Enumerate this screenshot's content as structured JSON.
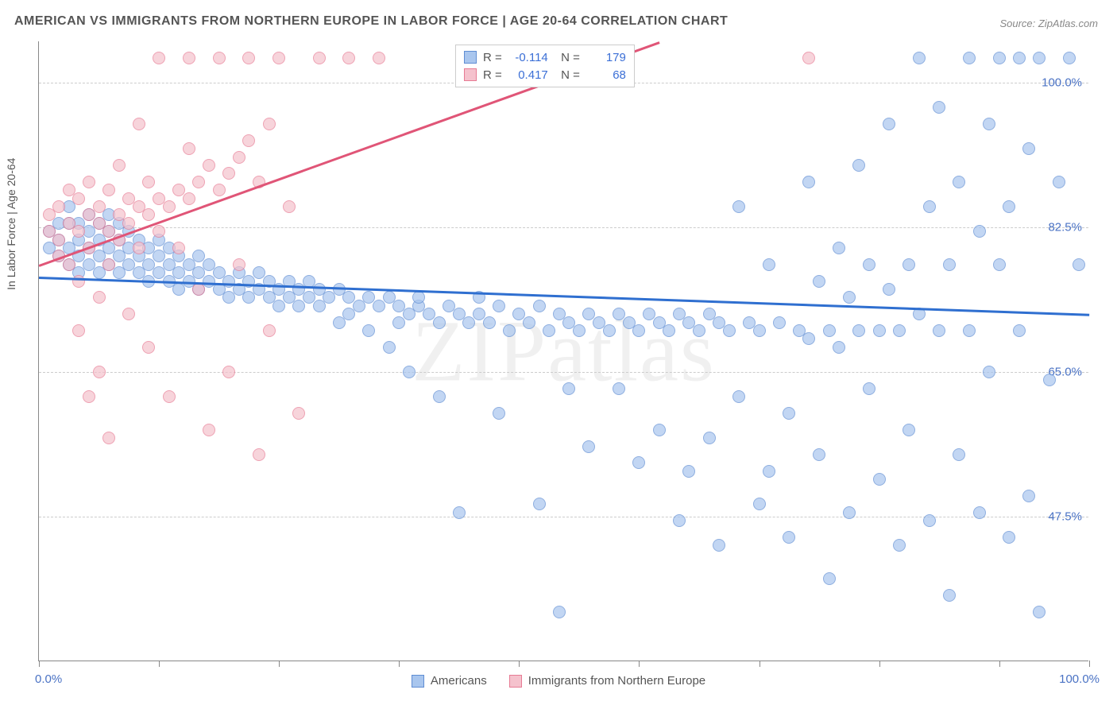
{
  "title": "AMERICAN VS IMMIGRANTS FROM NORTHERN EUROPE IN LABOR FORCE | AGE 20-64 CORRELATION CHART",
  "source": "Source: ZipAtlas.com",
  "watermark": "ZIPatlas",
  "y_axis_label": "In Labor Force | Age 20-64",
  "chart": {
    "type": "scatter",
    "background_color": "#ffffff",
    "grid_color": "#cccccc",
    "axis_color": "#888888",
    "label_color": "#4a72c4",
    "label_fontsize": 15,
    "title_fontsize": 16,
    "xlim": [
      0,
      105
    ],
    "ylim": [
      30,
      105
    ],
    "x_ticks": [
      0,
      12,
      24,
      36,
      48,
      60,
      72,
      84,
      96,
      105
    ],
    "x_tick_labels": {
      "0": "0.0%",
      "105": "100.0%"
    },
    "y_ticks": [
      47.5,
      65.0,
      82.5,
      100.0
    ],
    "y_tick_labels": [
      "47.5%",
      "65.0%",
      "82.5%",
      "100.0%"
    ],
    "marker_radius": 8,
    "marker_fill_opacity": 0.35,
    "series": [
      {
        "name": "Americans",
        "color_fill": "#a9c6ee",
        "color_stroke": "#5f8dd3",
        "trend_color": "#2f6fd0",
        "R": "-0.114",
        "N": "179",
        "trend": {
          "x1": 0,
          "y1": 76.5,
          "x2": 105,
          "y2": 72.0
        },
        "points": [
          [
            1,
            80
          ],
          [
            1,
            82
          ],
          [
            2,
            81
          ],
          [
            2,
            83
          ],
          [
            2,
            79
          ],
          [
            3,
            80
          ],
          [
            3,
            83
          ],
          [
            3,
            78
          ],
          [
            3,
            85
          ],
          [
            4,
            81
          ],
          [
            4,
            79
          ],
          [
            4,
            77
          ],
          [
            4,
            83
          ],
          [
            5,
            80
          ],
          [
            5,
            82
          ],
          [
            5,
            78
          ],
          [
            5,
            84
          ],
          [
            6,
            81
          ],
          [
            6,
            79
          ],
          [
            6,
            83
          ],
          [
            6,
            77
          ],
          [
            7,
            80
          ],
          [
            7,
            82
          ],
          [
            7,
            78
          ],
          [
            7,
            84
          ],
          [
            8,
            81
          ],
          [
            8,
            79
          ],
          [
            8,
            77
          ],
          [
            8,
            83
          ],
          [
            9,
            80
          ],
          [
            9,
            78
          ],
          [
            9,
            82
          ],
          [
            10,
            79
          ],
          [
            10,
            81
          ],
          [
            10,
            77
          ],
          [
            11,
            80
          ],
          [
            11,
            78
          ],
          [
            11,
            76
          ],
          [
            12,
            79
          ],
          [
            12,
            77
          ],
          [
            12,
            81
          ],
          [
            13,
            78
          ],
          [
            13,
            76
          ],
          [
            13,
            80
          ],
          [
            14,
            77
          ],
          [
            14,
            79
          ],
          [
            14,
            75
          ],
          [
            15,
            78
          ],
          [
            15,
            76
          ],
          [
            16,
            77
          ],
          [
            16,
            75
          ],
          [
            16,
            79
          ],
          [
            17,
            76
          ],
          [
            17,
            78
          ],
          [
            18,
            77
          ],
          [
            18,
            75
          ],
          [
            19,
            76
          ],
          [
            19,
            74
          ],
          [
            20,
            77
          ],
          [
            20,
            75
          ],
          [
            21,
            76
          ],
          [
            21,
            74
          ],
          [
            22,
            75
          ],
          [
            22,
            77
          ],
          [
            23,
            76
          ],
          [
            23,
            74
          ],
          [
            24,
            75
          ],
          [
            24,
            73
          ],
          [
            25,
            76
          ],
          [
            25,
            74
          ],
          [
            26,
            75
          ],
          [
            26,
            73
          ],
          [
            27,
            74
          ],
          [
            27,
            76
          ],
          [
            28,
            75
          ],
          [
            28,
            73
          ],
          [
            29,
            74
          ],
          [
            30,
            75
          ],
          [
            30,
            71
          ],
          [
            31,
            74
          ],
          [
            31,
            72
          ],
          [
            32,
            73
          ],
          [
            33,
            74
          ],
          [
            33,
            70
          ],
          [
            34,
            73
          ],
          [
            35,
            74
          ],
          [
            35,
            68
          ],
          [
            36,
            73
          ],
          [
            36,
            71
          ],
          [
            37,
            72
          ],
          [
            37,
            65
          ],
          [
            38,
            73
          ],
          [
            38,
            74
          ],
          [
            39,
            72
          ],
          [
            40,
            71
          ],
          [
            40,
            62
          ],
          [
            41,
            73
          ],
          [
            42,
            72
          ],
          [
            42,
            48
          ],
          [
            43,
            71
          ],
          [
            44,
            72
          ],
          [
            44,
            74
          ],
          [
            45,
            71
          ],
          [
            46,
            73
          ],
          [
            46,
            60
          ],
          [
            47,
            70
          ],
          [
            48,
            72
          ],
          [
            49,
            71
          ],
          [
            50,
            73
          ],
          [
            50,
            49
          ],
          [
            51,
            70
          ],
          [
            52,
            72
          ],
          [
            52,
            36
          ],
          [
            53,
            71
          ],
          [
            53,
            63
          ],
          [
            54,
            70
          ],
          [
            55,
            72
          ],
          [
            55,
            56
          ],
          [
            56,
            71
          ],
          [
            57,
            70
          ],
          [
            58,
            63
          ],
          [
            58,
            72
          ],
          [
            59,
            71
          ],
          [
            60,
            70
          ],
          [
            60,
            54
          ],
          [
            61,
            72
          ],
          [
            62,
            71
          ],
          [
            62,
            58
          ],
          [
            63,
            70
          ],
          [
            64,
            72
          ],
          [
            64,
            47
          ],
          [
            65,
            71
          ],
          [
            65,
            53
          ],
          [
            66,
            70
          ],
          [
            67,
            72
          ],
          [
            67,
            57
          ],
          [
            68,
            71
          ],
          [
            68,
            44
          ],
          [
            69,
            70
          ],
          [
            70,
            62
          ],
          [
            70,
            85
          ],
          [
            71,
            71
          ],
          [
            72,
            70
          ],
          [
            72,
            49
          ],
          [
            73,
            53
          ],
          [
            73,
            78
          ],
          [
            74,
            71
          ],
          [
            75,
            60
          ],
          [
            75,
            45
          ],
          [
            76,
            70
          ],
          [
            77,
            69
          ],
          [
            77,
            88
          ],
          [
            78,
            55
          ],
          [
            78,
            76
          ],
          [
            79,
            70
          ],
          [
            79,
            40
          ],
          [
            80,
            68
          ],
          [
            80,
            80
          ],
          [
            81,
            74
          ],
          [
            81,
            48
          ],
          [
            82,
            70
          ],
          [
            82,
            90
          ],
          [
            83,
            63
          ],
          [
            83,
            78
          ],
          [
            84,
            70
          ],
          [
            84,
            52
          ],
          [
            85,
            75
          ],
          [
            85,
            95
          ],
          [
            86,
            70
          ],
          [
            86,
            44
          ],
          [
            87,
            78
          ],
          [
            87,
            58
          ],
          [
            88,
            72
          ],
          [
            88,
            103
          ],
          [
            89,
            85
          ],
          [
            89,
            47
          ],
          [
            90,
            70
          ],
          [
            90,
            97
          ],
          [
            91,
            78
          ],
          [
            91,
            38
          ],
          [
            92,
            88
          ],
          [
            92,
            55
          ],
          [
            93,
            70
          ],
          [
            93,
            103
          ],
          [
            94,
            82
          ],
          [
            94,
            48
          ],
          [
            95,
            95
          ],
          [
            95,
            65
          ],
          [
            96,
            103
          ],
          [
            96,
            78
          ],
          [
            97,
            85
          ],
          [
            97,
            45
          ],
          [
            98,
            103
          ],
          [
            98,
            70
          ],
          [
            99,
            92
          ],
          [
            99,
            50
          ],
          [
            100,
            103
          ],
          [
            100,
            36
          ],
          [
            101,
            64
          ],
          [
            102,
            88
          ],
          [
            103,
            103
          ],
          [
            104,
            78
          ]
        ]
      },
      {
        "name": "Immigrants from Northern Europe",
        "color_fill": "#f5c2cd",
        "color_stroke": "#e77b94",
        "trend_color": "#e05577",
        "R": "0.417",
        "N": "68",
        "trend": {
          "x1": 0,
          "y1": 78.0,
          "x2": 62,
          "y2": 105.0
        },
        "points": [
          [
            1,
            82
          ],
          [
            1,
            84
          ],
          [
            2,
            81
          ],
          [
            2,
            85
          ],
          [
            2,
            79
          ],
          [
            3,
            83
          ],
          [
            3,
            87
          ],
          [
            3,
            78
          ],
          [
            4,
            82
          ],
          [
            4,
            86
          ],
          [
            4,
            76
          ],
          [
            4,
            70
          ],
          [
            5,
            84
          ],
          [
            5,
            80
          ],
          [
            5,
            88
          ],
          [
            5,
            62
          ],
          [
            6,
            83
          ],
          [
            6,
            85
          ],
          [
            6,
            74
          ],
          [
            6,
            65
          ],
          [
            7,
            82
          ],
          [
            7,
            87
          ],
          [
            7,
            78
          ],
          [
            7,
            57
          ],
          [
            8,
            84
          ],
          [
            8,
            81
          ],
          [
            8,
            90
          ],
          [
            9,
            83
          ],
          [
            9,
            86
          ],
          [
            9,
            72
          ],
          [
            10,
            85
          ],
          [
            10,
            80
          ],
          [
            10,
            95
          ],
          [
            11,
            84
          ],
          [
            11,
            88
          ],
          [
            11,
            68
          ],
          [
            12,
            86
          ],
          [
            12,
            82
          ],
          [
            12,
            103
          ],
          [
            13,
            85
          ],
          [
            13,
            62
          ],
          [
            14,
            87
          ],
          [
            14,
            80
          ],
          [
            15,
            86
          ],
          [
            15,
            92
          ],
          [
            15,
            103
          ],
          [
            16,
            88
          ],
          [
            16,
            75
          ],
          [
            17,
            90
          ],
          [
            17,
            58
          ],
          [
            18,
            87
          ],
          [
            18,
            103
          ],
          [
            19,
            89
          ],
          [
            19,
            65
          ],
          [
            20,
            91
          ],
          [
            20,
            78
          ],
          [
            21,
            93
          ],
          [
            21,
            103
          ],
          [
            22,
            88
          ],
          [
            22,
            55
          ],
          [
            23,
            95
          ],
          [
            23,
            70
          ],
          [
            24,
            103
          ],
          [
            25,
            85
          ],
          [
            26,
            60
          ],
          [
            28,
            103
          ],
          [
            31,
            103
          ],
          [
            34,
            103
          ],
          [
            52,
            103
          ],
          [
            77,
            103
          ]
        ]
      }
    ]
  },
  "legend": {
    "series1": "Americans",
    "series2": "Immigrants from Northern Europe"
  }
}
